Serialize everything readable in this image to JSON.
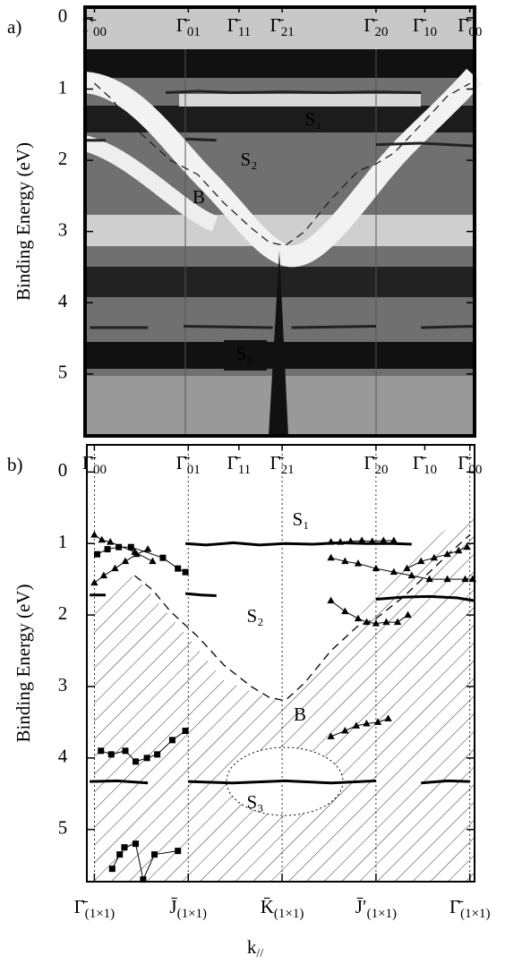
{
  "chart_data": [
    {
      "type": "image",
      "title": "a)",
      "ylabel": "Binding Energy (eV)",
      "xlim": [
        -0.1,
        4.05
      ],
      "ylim": [
        -0.15,
        5.87
      ],
      "yticks": [
        0,
        1,
        2,
        3,
        4,
        5
      ],
      "x2ticks": [
        {
          "value": 0,
          "label": "Γ̄",
          "sub": "00"
        },
        {
          "value": 1,
          "label": "Γ̄",
          "sub": "01"
        },
        {
          "value": 1.54,
          "label": "Γ̄",
          "sub": "11"
        },
        {
          "value": 2,
          "label": "Γ̄",
          "sub": "21"
        },
        {
          "value": 3,
          "label": "Γ̄",
          "sub": "20"
        },
        {
          "value": 3.52,
          "label": "Γ̄",
          "sub": "10"
        },
        {
          "value": 4,
          "label": "Γ̄",
          "sub": "00"
        }
      ],
      "annotations": [
        "S₁",
        "S₂",
        "B",
        "S₃"
      ],
      "series": [
        {
          "color": "#222",
          "marker": "none",
          "dash": false,
          "x": [
            0.76,
            1.1,
            1.48,
            2.03,
            2.52,
            3.0,
            3.48
          ],
          "values": [
            1.05,
            1.03,
            1.05,
            1.04,
            1.05,
            1.04,
            1.05
          ]
        },
        {
          "color": "#222",
          "marker": "none",
          "dash": false,
          "x": [
            -0.1,
            0.12
          ],
          "values": [
            1.72,
            1.72
          ]
        },
        {
          "color": "#222",
          "marker": "none",
          "dash": false,
          "x": [
            0.97,
            1.3
          ],
          "values": [
            1.7,
            1.72
          ]
        },
        {
          "color": "#222",
          "marker": "none",
          "dash": false,
          "x": [
            3.0,
            3.48,
            4.05
          ],
          "values": [
            1.78,
            1.76,
            1.8
          ]
        },
        {
          "color": "#222",
          "marker": "none",
          "dash": false,
          "x": [
            -0.05,
            0.57
          ],
          "values": [
            4.35,
            4.35
          ]
        },
        {
          "color": "#222",
          "marker": "none",
          "dash": false,
          "x": [
            0.95,
            1.9
          ],
          "values": [
            4.33,
            4.35
          ]
        },
        {
          "color": "#222",
          "marker": "none",
          "dash": false,
          "x": [
            2.1,
            3.0
          ],
          "values": [
            4.35,
            4.33
          ]
        },
        {
          "color": "#222",
          "marker": "none",
          "dash": false,
          "x": [
            3.48,
            4.05
          ],
          "values": [
            4.35,
            4.33
          ]
        },
        {
          "color": "#222",
          "marker": "none",
          "dash": true,
          "x": [
            0,
            0.19,
            0.43,
            0.81,
            1.1,
            1.38,
            1.67,
            1.86,
            2.03,
            2.24,
            2.52,
            2.81,
            3.0,
            3.19,
            3.48,
            3.76,
            4.0
          ],
          "values": [
            0.92,
            1.15,
            1.55,
            2.0,
            2.2,
            2.6,
            2.95,
            3.15,
            3.2,
            3.0,
            2.55,
            2.15,
            2.05,
            1.9,
            1.5,
            1.1,
            0.92
          ]
        }
      ]
    },
    {
      "type": "line",
      "title": "b)",
      "ylabel": "Binding Energy (eV)",
      "xlabel": "k",
      "xlabel_sub": "//",
      "xlim": [
        -0.08,
        4.05
      ],
      "ylim": [
        -0.38,
        5.73
      ],
      "yticks": [
        0,
        1,
        2,
        3,
        4,
        5
      ],
      "grid": true,
      "x2ticks": [
        {
          "value": 0,
          "label": "Γ̄",
          "sub": "00"
        },
        {
          "value": 1,
          "label": "Γ̄",
          "sub": "01"
        },
        {
          "value": 1.54,
          "label": "Γ̄",
          "sub": "11"
        },
        {
          "value": 2,
          "label": "Γ̄",
          "sub": "21"
        },
        {
          "value": 3,
          "label": "Γ̄",
          "sub": "20"
        },
        {
          "value": 3.52,
          "label": "Γ̄",
          "sub": "10"
        },
        {
          "value": 4,
          "label": "Γ̄",
          "sub": "00"
        }
      ],
      "xticks": [
        {
          "value": 0,
          "label": "Γ̄",
          "sub": "(1×1)"
        },
        {
          "value": 1,
          "label": "J̄",
          "sub": "(1×1)"
        },
        {
          "value": 2,
          "label": "K̄",
          "sub": "(1×1)"
        },
        {
          "value": 3,
          "label": "J̄′",
          "sub": "(1×1)"
        },
        {
          "value": 4,
          "label": "Γ̄",
          "sub": "(1×1)"
        }
      ],
      "annotations": [
        "S₁",
        "S₂",
        "B",
        "S₃"
      ],
      "series": [
        {
          "color": "#000",
          "marker": "none",
          "dash": false,
          "x": [
            0.97,
            1.19,
            1.48,
            1.76,
            2.03,
            2.33,
            2.62,
            2.9,
            3.19,
            3.38
          ],
          "values": [
            1.0,
            1.02,
            0.99,
            1.02,
            1.0,
            1.01,
            0.99,
            1.0,
            1.0,
            1.01
          ]
        },
        {
          "color": "#000",
          "marker": "none",
          "dash": false,
          "x": [
            -0.05,
            0.12
          ],
          "values": [
            1.72,
            1.72
          ]
        },
        {
          "color": "#000",
          "marker": "none",
          "dash": false,
          "x": [
            0.97,
            1.14,
            1.3
          ],
          "values": [
            1.7,
            1.72,
            1.73
          ]
        },
        {
          "color": "#000",
          "marker": "none",
          "dash": false,
          "x": [
            3.0,
            3.29,
            3.57,
            3.86,
            4.05
          ],
          "values": [
            1.78,
            1.75,
            1.74,
            1.76,
            1.8
          ]
        },
        {
          "color": "#000",
          "marker": "none",
          "dash": false,
          "x": [
            -0.05,
            0.24,
            0.57
          ],
          "values": [
            4.33,
            4.32,
            4.35
          ]
        },
        {
          "color": "#000",
          "marker": "none",
          "dash": false,
          "x": [
            1.0,
            1.48,
            2.03,
            2.52,
            3.0
          ],
          "values": [
            4.33,
            4.35,
            4.32,
            4.35,
            4.32
          ]
        },
        {
          "color": "#000",
          "marker": "none",
          "dash": false,
          "x": [
            3.48,
            3.76,
            4.0
          ],
          "values": [
            4.35,
            4.32,
            4.33
          ]
        },
        {
          "color": "#000",
          "marker": "none",
          "dash": true,
          "x": [
            0.43,
            0.62,
            0.81,
            1.1,
            1.38,
            1.67,
            1.86,
            2.03,
            2.24,
            2.52,
            2.81,
            3.0,
            3.29,
            3.57,
            3.81,
            4.0
          ],
          "values": [
            1.45,
            1.65,
            1.95,
            2.3,
            2.7,
            3.0,
            3.15,
            3.2,
            2.95,
            2.5,
            2.15,
            2.05,
            1.75,
            1.4,
            1.1,
            0.88
          ]
        },
        {
          "color": "#000",
          "marker": "triangle",
          "dash": false,
          "x": [
            0,
            0.08,
            0.17,
            0.43,
            0.62
          ],
          "values": [
            0.88,
            0.95,
            0.98,
            1.12,
            1.25
          ]
        },
        {
          "color": "#000",
          "marker": "triangle",
          "dash": false,
          "x": [
            0,
            0.1,
            0.22,
            0.33,
            0.45,
            0.57
          ],
          "values": [
            1.55,
            1.45,
            1.35,
            1.25,
            1.15,
            1.08
          ]
        },
        {
          "color": "#000",
          "marker": "square",
          "dash": false,
          "x": [
            0.03,
            0.14,
            0.26,
            0.39,
            0.73,
            0.89,
            0.97
          ],
          "values": [
            1.15,
            1.08,
            1.05,
            1.05,
            1.2,
            1.35,
            1.4
          ]
        },
        {
          "color": "#000",
          "marker": "square",
          "dash": false,
          "x": [
            0.07,
            0.18,
            0.33,
            0.44,
            0.56,
            0.67,
            0.83,
            0.97
          ],
          "values": [
            3.9,
            3.95,
            3.9,
            4.05,
            4.0,
            3.95,
            3.75,
            3.62
          ]
        },
        {
          "color": "#000",
          "marker": "square",
          "dash": false,
          "x": [
            0.19,
            0.27,
            0.32,
            0.44,
            0.52,
            0.64,
            0.89
          ],
          "values": [
            5.55,
            5.35,
            5.25,
            5.2,
            5.7,
            5.35,
            5.3
          ]
        },
        {
          "color": "#000",
          "marker": "triangle",
          "dash": false,
          "x": [
            2.52,
            2.62,
            2.73,
            2.85,
            2.96,
            3.08,
            3.19
          ],
          "values": [
            0.98,
            0.98,
            0.97,
            0.96,
            0.97,
            0.96,
            0.96
          ]
        },
        {
          "color": "#000",
          "marker": "triangle",
          "dash": false,
          "x": [
            2.52,
            2.67,
            2.81,
            3.0,
            3.19,
            3.38,
            3.57,
            3.76,
            3.95,
            4.03
          ],
          "values": [
            1.2,
            1.25,
            1.28,
            1.35,
            1.4,
            1.45,
            1.5,
            1.5,
            1.5,
            1.5
          ]
        },
        {
          "color": "#000",
          "marker": "triangle",
          "dash": false,
          "x": [
            3.33,
            3.48,
            3.62,
            3.76,
            3.88,
            3.97
          ],
          "values": [
            1.35,
            1.25,
            1.2,
            1.15,
            1.1,
            1.05
          ]
        },
        {
          "color": "#000",
          "marker": "triangle",
          "dash": false,
          "x": [
            2.52,
            2.67,
            2.81,
            2.9,
            3.0,
            3.11,
            3.23,
            3.34
          ],
          "values": [
            1.8,
            1.95,
            2.05,
            2.1,
            2.12,
            2.1,
            2.1,
            2.0
          ]
        },
        {
          "color": "#000",
          "marker": "triangle",
          "dash": false,
          "x": [
            2.52,
            2.67,
            2.79,
            2.9,
            3.02,
            3.13
          ],
          "values": [
            3.7,
            3.62,
            3.55,
            3.52,
            3.5,
            3.45
          ]
        }
      ]
    }
  ]
}
